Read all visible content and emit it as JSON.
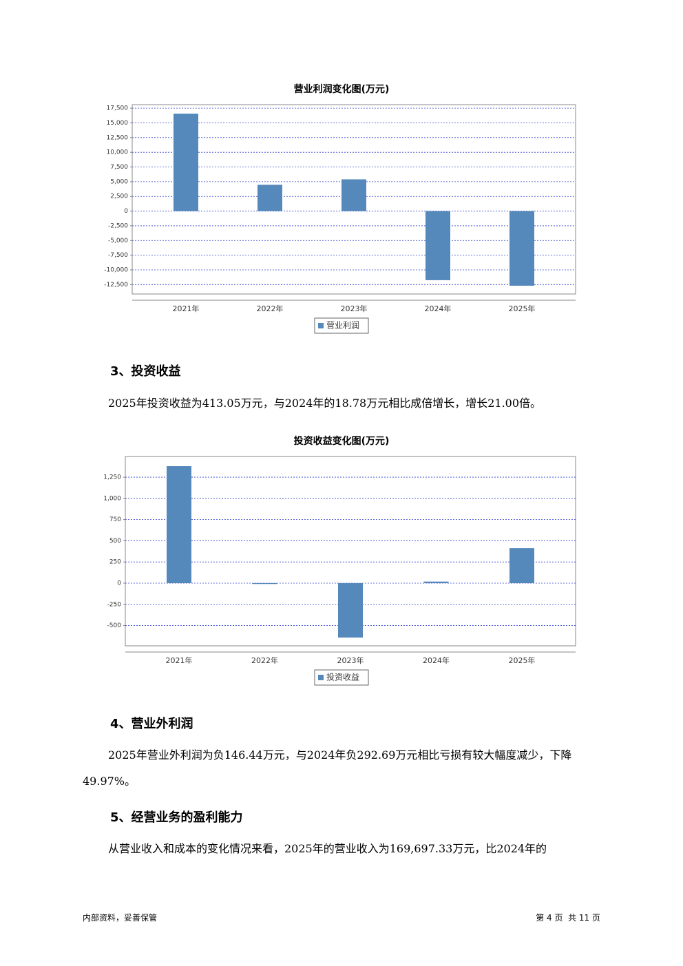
{
  "chart_data": [
    {
      "type": "bar",
      "title": "营业利润变化图(万元)",
      "categories": [
        "2021年",
        "2022年",
        "2023年",
        "2024年",
        "2025年"
      ],
      "series": [
        {
          "name": "营业利润",
          "color": "#5588bb",
          "values": [
            16570,
            4470,
            5400,
            -11750,
            -12690
          ]
        }
      ],
      "ylim": [
        -14100,
        18100
      ],
      "yticks": [
        {
          "value": 17500,
          "label": "17,500"
        },
        {
          "value": 15000,
          "label": "15,000"
        },
        {
          "value": 12500,
          "label": "12,500"
        },
        {
          "value": 10000,
          "label": "10,000"
        },
        {
          "value": 7500,
          "label": "7,500"
        },
        {
          "value": 5000,
          "label": "5,000"
        },
        {
          "value": 2500,
          "label": "2,500"
        },
        0,
        {
          "value": -2500,
          "label": "-2,500"
        },
        {
          "value": -5000,
          "label": "-5,000"
        },
        {
          "value": -7500,
          "label": "-7,500"
        },
        {
          "value": -10000,
          "label": "-10,000"
        },
        {
          "value": -12500,
          "label": "-12,500"
        }
      ],
      "grid": true,
      "legend": "bottom"
    },
    {
      "type": "bar",
      "title": "投资收益变化图(万元)",
      "categories": [
        "2021年",
        "2022年",
        "2023年",
        "2024年",
        "2025年"
      ],
      "series": [
        {
          "name": "投资收益",
          "color": "#5588bb",
          "values": [
            1380,
            -10,
            -641,
            18.78,
            413.05
          ]
        }
      ],
      "ylim": [
        -739,
        1494
      ],
      "yticks": [
        {
          "value": 1250,
          "label": "1,250"
        },
        {
          "value": 1000,
          "label": "1,000"
        },
        750,
        500,
        250,
        0,
        -250,
        -500
      ],
      "grid": true,
      "legend": "bottom"
    }
  ],
  "sections": [
    {
      "heading": "3、投资收益",
      "paragraph": "2025年投资收益为413.05万元，与2024年的18.78万元相比成倍增长，增长21.00倍。"
    },
    {
      "heading": "4、营业外利润",
      "paragraph": "2025年营业外利润为负146.44万元，与2024年负292.69万元相比亏损有较大幅度减少，下降49.97%。"
    },
    {
      "heading": "5、经营业务的盈利能力",
      "paragraph": "从营业收入和成本的变化情况来看，2025年的营业收入为169,697.33万元，比2024年的"
    }
  ],
  "footer": {
    "left": "内部资料，妥善保管",
    "right": "第 4 页  共 11 页"
  }
}
